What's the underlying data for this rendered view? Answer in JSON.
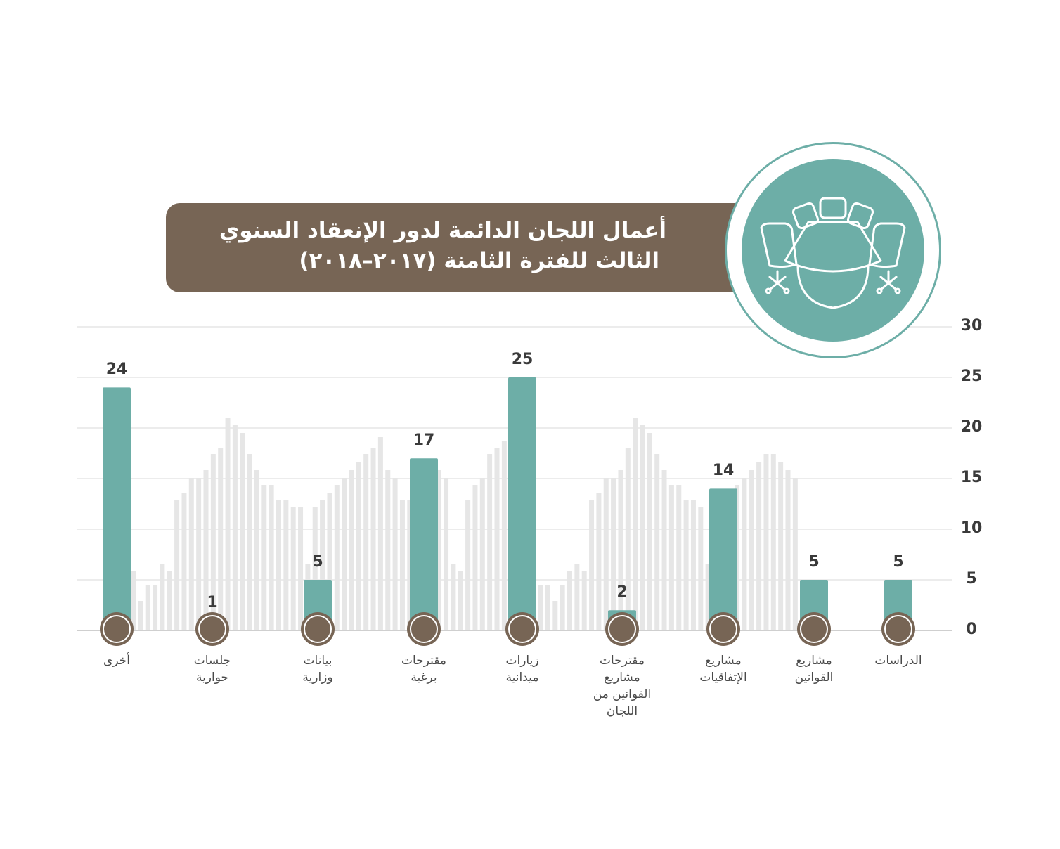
{
  "title": {
    "line1": "أعمال اللجان الدائمة لدور الإنعقاد السنوي",
    "line2": "الثالث للفترة الثامنة (٢٠١٧–٢٠١٨)"
  },
  "colors": {
    "bar": "#6daea7",
    "circle": "#776555",
    "banner": "#776555",
    "background_bars": "#e6e6e6",
    "grid": "#d9d9d9"
  },
  "icons": [
    "conference-table-icon"
  ],
  "chart_data": {
    "type": "bar",
    "title": "أعمال اللجان الدائمة لدور الإنعقاد السنوي الثالث للفترة الثامنة (٢٠١٧–٢٠١٨)",
    "orientation": "vertical, categories right-to-left",
    "ylim": [
      0,
      30
    ],
    "yticks": [
      "0",
      "5",
      "10",
      "15",
      "20",
      "25",
      "30"
    ],
    "grid": true,
    "categories": [
      [
        "الدراسات"
      ],
      [
        "مشاريع",
        "القوانين"
      ],
      [
        "مشاريع",
        "الإتفاقيات"
      ],
      [
        "مقترحات",
        "مشاريع",
        "القوانين من",
        "اللجان"
      ],
      [
        "زيارات",
        "ميدانية"
      ],
      [
        "مقترحات",
        "برغبة"
      ],
      [
        "بيانات",
        "وزارية"
      ],
      [
        "جلسات",
        "حوارية"
      ],
      [
        "أخرى"
      ]
    ],
    "values": [
      5,
      5,
      14,
      2,
      25,
      17,
      5,
      1,
      24
    ],
    "value_labels": [
      "5",
      "5",
      "14",
      "2",
      "25",
      "17",
      "5",
      "1",
      "24"
    ]
  }
}
